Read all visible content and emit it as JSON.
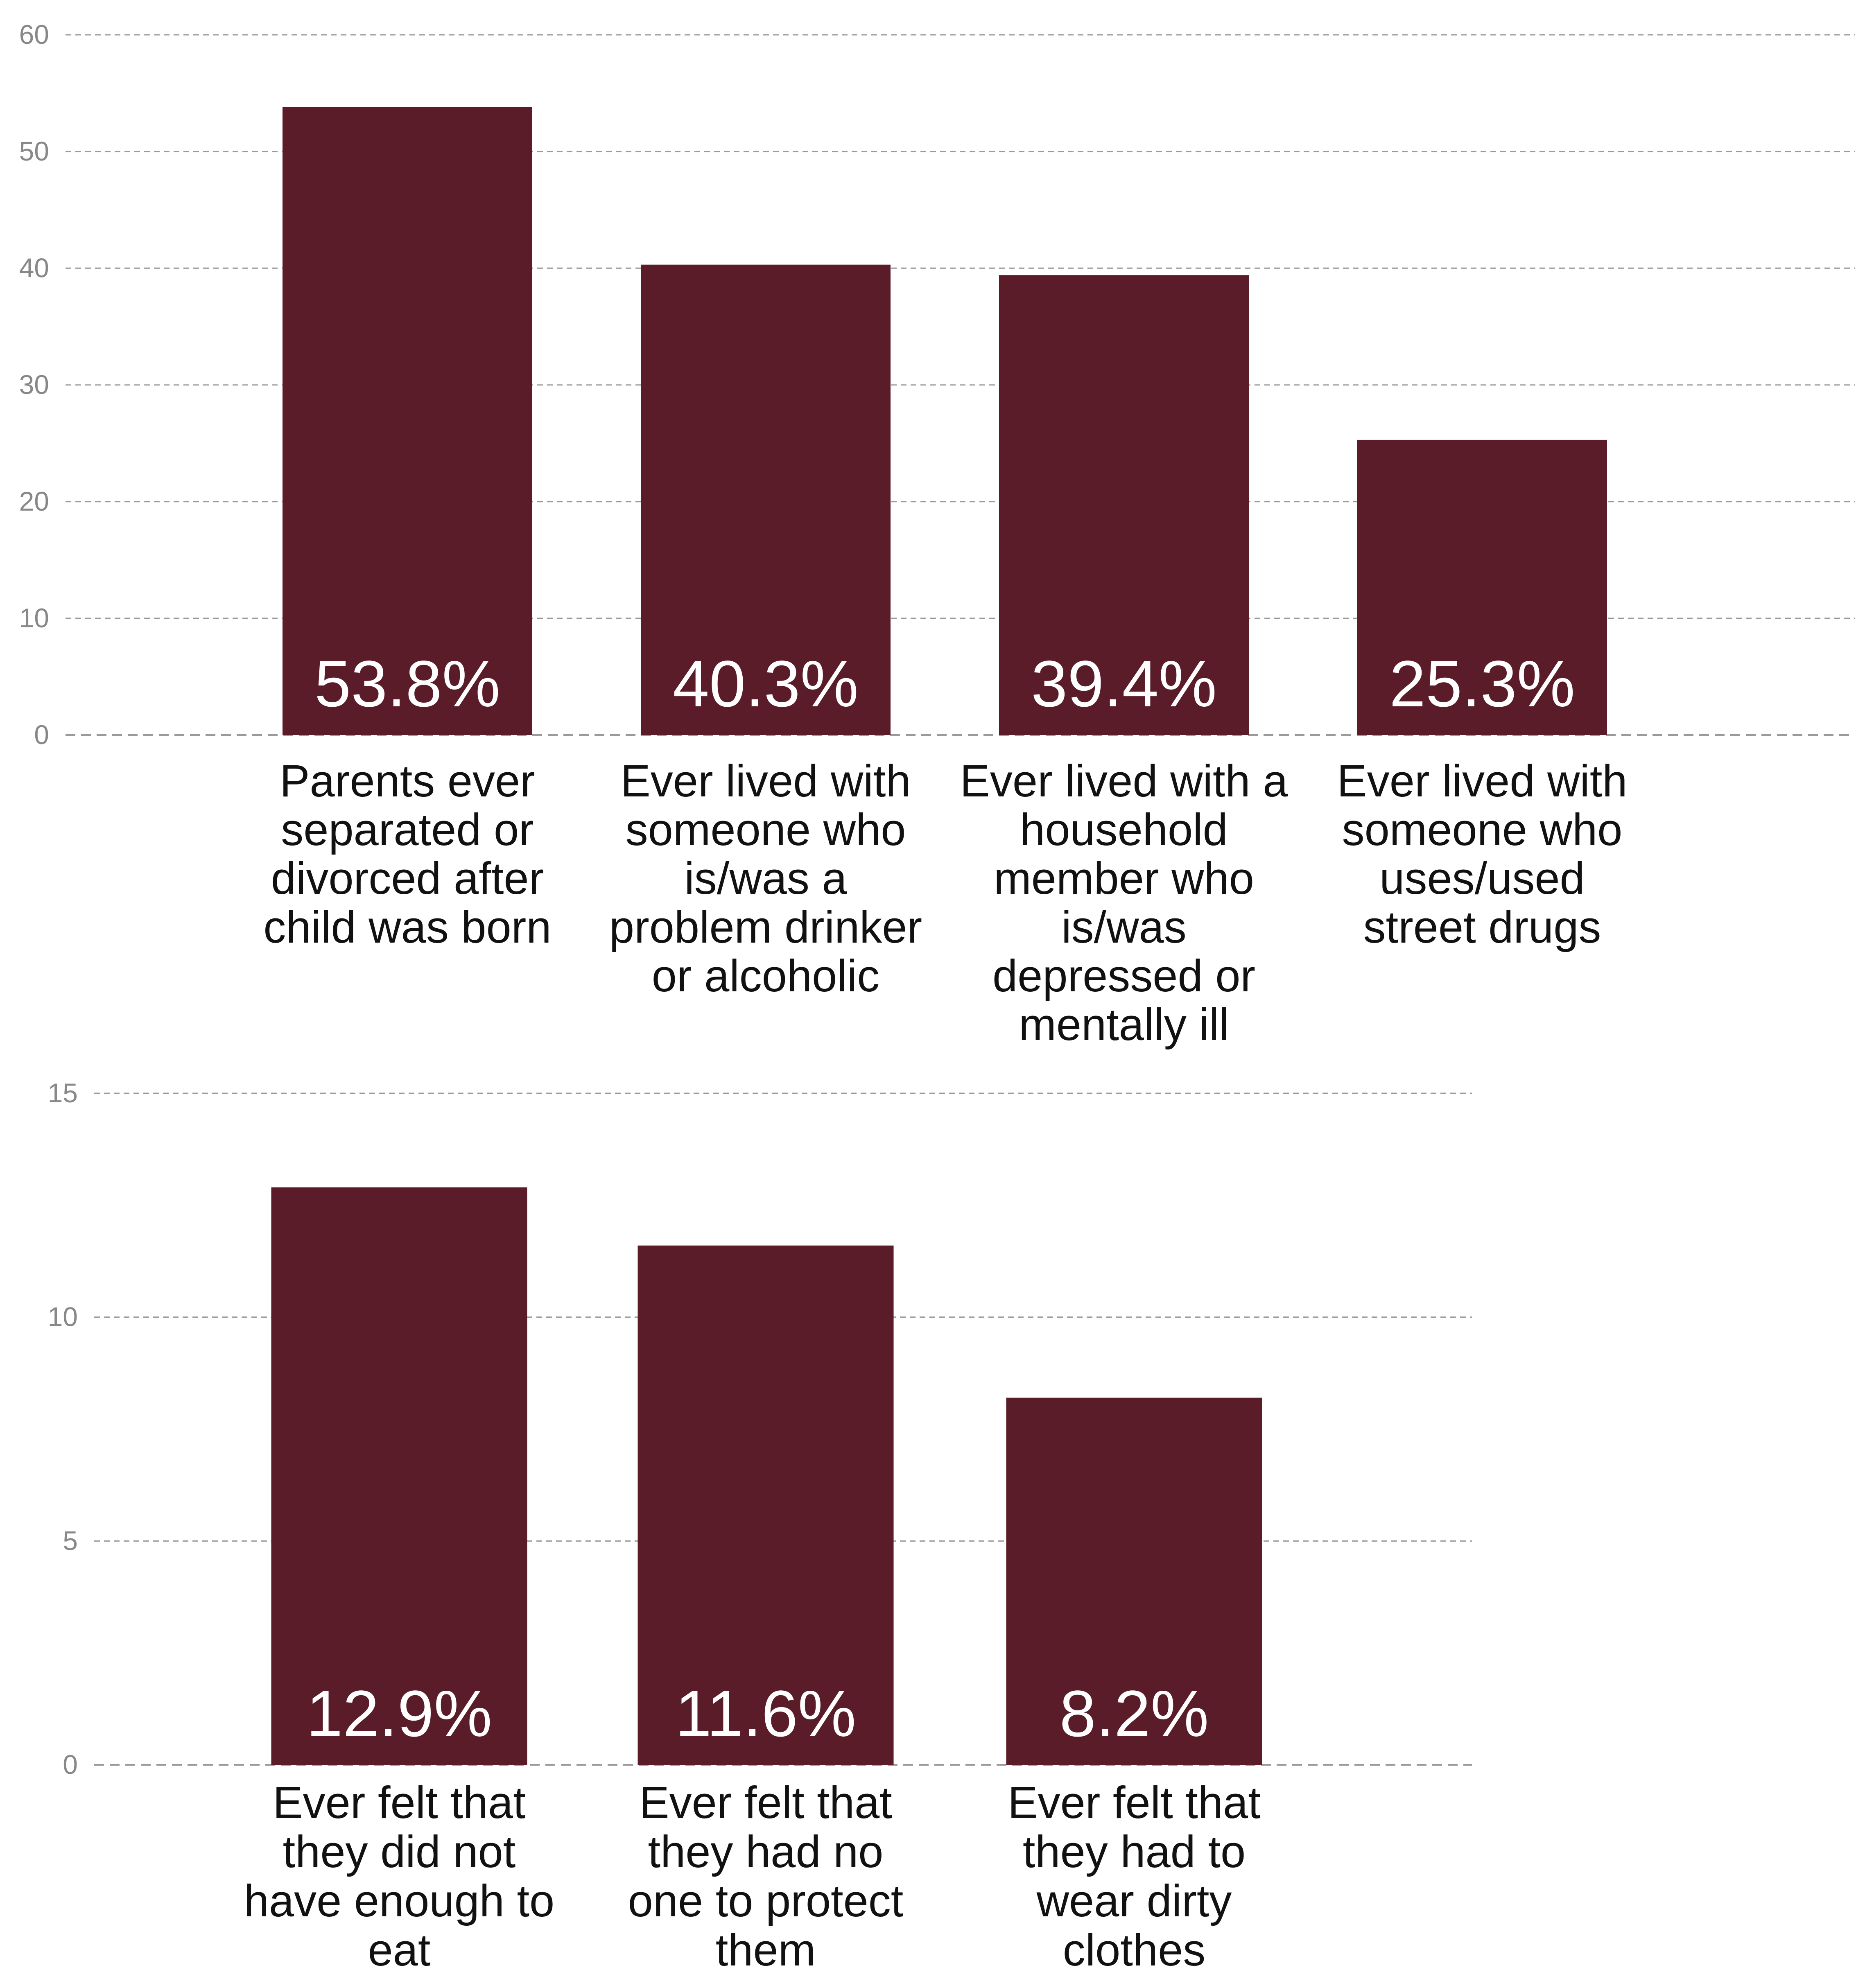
{
  "colors": {
    "bar": "#5a1c28",
    "grid": "#9a9a9a",
    "tick": "#888888",
    "label": "#111111",
    "value": "#ffffff"
  },
  "chart_data": [
    {
      "type": "bar",
      "title": "",
      "xlabel": "",
      "ylabel": "",
      "ylim": [
        0,
        60
      ],
      "yticks": [
        0,
        10,
        20,
        30,
        40,
        50,
        60
      ],
      "grid": true,
      "legend": "none",
      "categories": [
        "Parents ever separated or divorced after child was born",
        "Ever lived with someone who is/was a problem drinker or alcoholic",
        "Ever lived with a household member who is/was depressed or mentally ill",
        "Ever lived with someone who uses/used street drugs"
      ],
      "category_lines": [
        [
          "Parents ever",
          "separated or",
          "divorced after",
          "child was born"
        ],
        [
          "Ever lived with",
          "someone who",
          "is/was a",
          "problem drinker",
          "or alcoholic"
        ],
        [
          "Ever lived with a",
          "household",
          "member who",
          "is/was",
          "depressed or",
          "mentally ill"
        ],
        [
          "Ever lived with",
          "someone who",
          "uses/used",
          "street drugs"
        ]
      ],
      "values": [
        53.8,
        40.3,
        39.4,
        25.3
      ],
      "value_labels": [
        "53.8%",
        "40.3%",
        "39.4%",
        "25.3%"
      ]
    },
    {
      "type": "bar",
      "title": "",
      "xlabel": "",
      "ylabel": "",
      "ylim": [
        0,
        15
      ],
      "yticks": [
        0,
        5,
        10,
        15
      ],
      "grid": true,
      "legend": "none",
      "categories": [
        "Ever felt that they did not have enough to eat",
        "Ever felt that they had no one to protect them",
        "Ever felt that they had to wear dirty clothes"
      ],
      "category_lines": [
        [
          "Ever felt that",
          "they did not",
          "have enough to",
          "eat"
        ],
        [
          "Ever felt that",
          "they had no",
          "one to protect",
          "them"
        ],
        [
          "Ever felt that",
          "they had to",
          "wear dirty",
          "clothes"
        ]
      ],
      "values": [
        12.9,
        11.6,
        8.2
      ],
      "value_labels": [
        "12.9%",
        "11.6%",
        "8.2%"
      ]
    }
  ]
}
